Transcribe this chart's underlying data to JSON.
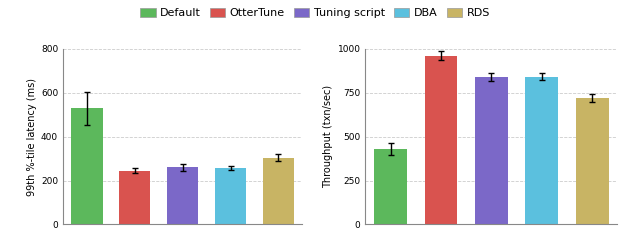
{
  "categories": [
    "Default",
    "OtterTune",
    "Tuning script",
    "DBA",
    "RDS"
  ],
  "colors": [
    "#5cb85c",
    "#d9534f",
    "#7b68c8",
    "#5bc0de",
    "#c8b464"
  ],
  "latency_values": [
    530,
    245,
    260,
    257,
    305
  ],
  "latency_errors": [
    75,
    12,
    15,
    10,
    15
  ],
  "throughput_values": [
    430,
    960,
    840,
    840,
    720
  ],
  "throughput_errors": [
    35,
    25,
    25,
    20,
    25
  ],
  "latency_ylabel": "99th %-tile latency (ms)",
  "throughput_ylabel": "Throughput (txn/sec)",
  "latency_ylim": [
    0,
    800
  ],
  "throughput_ylim": [
    0,
    1000
  ],
  "latency_yticks": [
    0,
    200,
    400,
    600,
    800
  ],
  "throughput_yticks": [
    0,
    250,
    500,
    750,
    1000
  ],
  "legend_labels": [
    "Default",
    "OtterTune",
    "Tuning script",
    "DBA",
    "RDS"
  ],
  "grid_color": "#cccccc",
  "legend_fontsize": 8.0,
  "axis_fontsize": 7.0,
  "tick_fontsize": 6.5
}
